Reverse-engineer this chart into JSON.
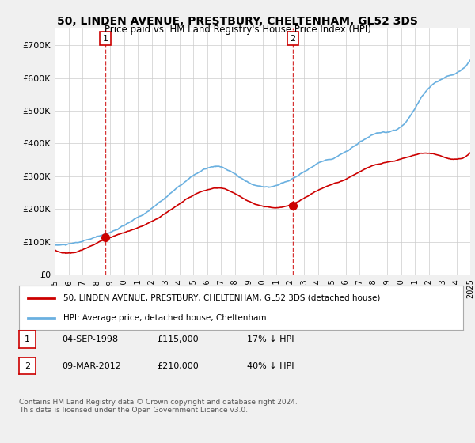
{
  "title": "50, LINDEN AVENUE, PRESTBURY, CHELTENHAM, GL52 3DS",
  "subtitle": "Price paid vs. HM Land Registry's House Price Index (HPI)",
  "background_color": "#f0f0f0",
  "plot_bg_color": "#ffffff",
  "ylim": [
    0,
    750000
  ],
  "yticks": [
    0,
    100000,
    200000,
    300000,
    400000,
    500000,
    600000,
    700000
  ],
  "ytick_labels": [
    "£0",
    "£100K",
    "£200K",
    "£300K",
    "£400K",
    "£500K",
    "£600K",
    "£700K"
  ],
  "x_start_year": 1995,
  "x_end_year": 2025,
  "sale1_year": 1998.67,
  "sale1_price": 115000,
  "sale1_label": "1",
  "sale2_year": 2012.19,
  "sale2_price": 210000,
  "sale2_label": "2",
  "legend_line1": "50, LINDEN AVENUE, PRESTBURY, CHELTENHAM, GL52 3DS (detached house)",
  "legend_line2": "HPI: Average price, detached house, Cheltenham",
  "table_row1": [
    "1",
    "04-SEP-1998",
    "£115,000",
    "17% ↓ HPI"
  ],
  "table_row2": [
    "2",
    "09-MAR-2012",
    "£210,000",
    "40% ↓ HPI"
  ],
  "footnote": "Contains HM Land Registry data © Crown copyright and database right 2024.\nThis data is licensed under the Open Government Licence v3.0.",
  "hpi_color": "#6ab0e0",
  "price_color": "#cc0000",
  "sale_marker_color": "#cc0000",
  "vline_color": "#cc0000"
}
